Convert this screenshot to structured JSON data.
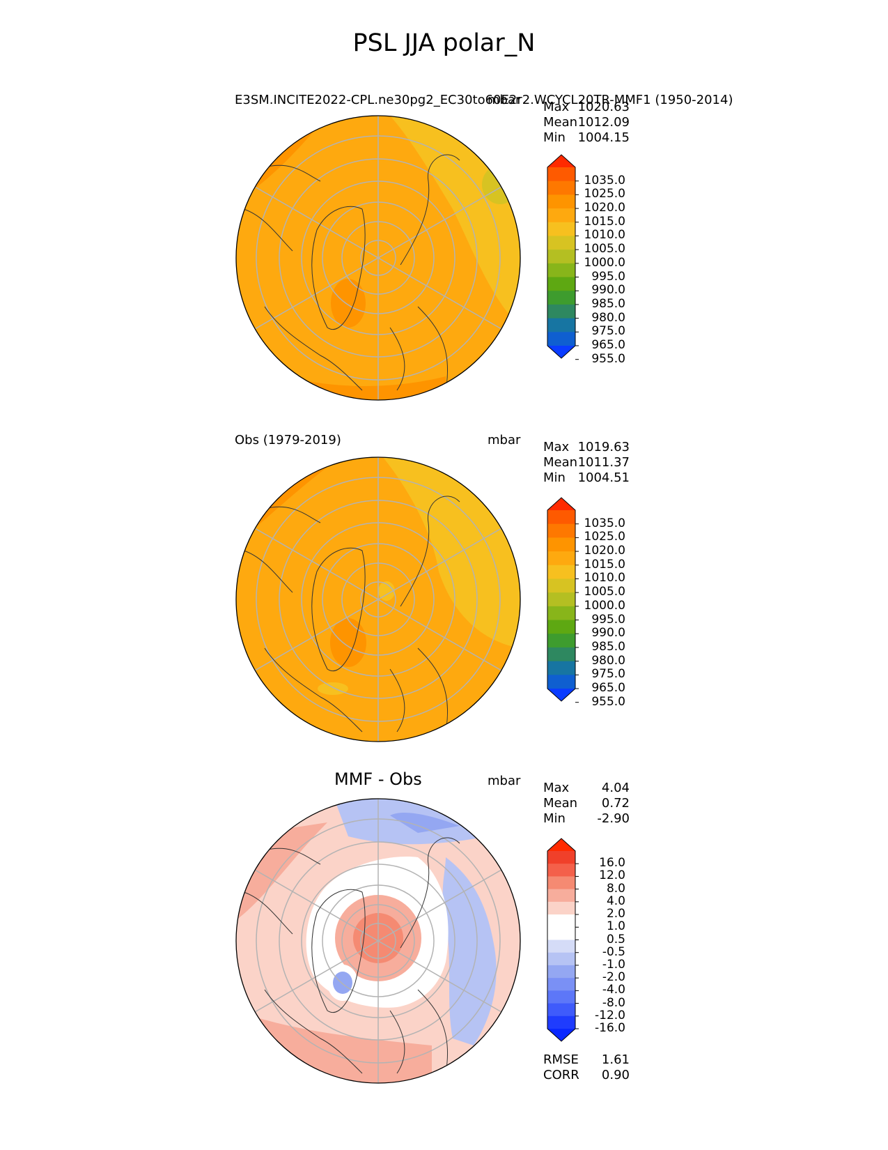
{
  "figure": {
    "title": "PSL JJA polar_N"
  },
  "panels": [
    {
      "name": "test",
      "left_title": "E3SM.INCITE2022-CPL.ne30pg2_EC30to60E2r2.WCYCL20TR-MMF1 (1950-2014)",
      "right_title": "mbar",
      "stats": [
        {
          "label": "Max",
          "value": "1020.63"
        },
        {
          "label": "Mean",
          "value": "1012.09"
        },
        {
          "label": "Min",
          "value": "1004.15"
        }
      ]
    },
    {
      "name": "reference",
      "left_title": "Obs (1979-2019)",
      "right_title": "mbar",
      "stats": [
        {
          "label": "Max",
          "value": "1019.63"
        },
        {
          "label": "Mean",
          "value": "1011.37"
        },
        {
          "label": "Min",
          "value": "1004.51"
        }
      ]
    },
    {
      "name": "difference",
      "center_title": "MMF - Obs",
      "right_title": "mbar",
      "stats": [
        {
          "label": "Max",
          "value": "4.04"
        },
        {
          "label": "Mean",
          "value": "0.72"
        },
        {
          "label": "Min",
          "value": "-2.90"
        }
      ],
      "metrics": [
        {
          "label": "RMSE",
          "value": "1.61"
        },
        {
          "label": "CORR",
          "value": "0.90"
        }
      ]
    }
  ],
  "colorbars": {
    "field": {
      "colors": [
        "#ff2a00",
        "#fe5a00",
        "#fe7800",
        "#fe9400",
        "#fea90f",
        "#f7c01f",
        "#d7c322",
        "#b4bf22",
        "#88b51a",
        "#5ea812",
        "#3e9c2e",
        "#2e8860",
        "#1775a2",
        "#0f5fd0",
        "#0a3cff"
      ],
      "tick_labels": [
        "1035.0",
        "1025.0",
        "1020.0",
        "1015.0",
        "1010.0",
        "1005.0",
        "1000.0",
        "995.0",
        "990.0",
        "985.0",
        "980.0",
        "975.0",
        "965.0",
        "955.0"
      ]
    },
    "diff": {
      "colors": [
        "#ff2a00",
        "#f0402a",
        "#f4604a",
        "#f58a72",
        "#f7ad9c",
        "#fbd3c8",
        "#ffffff",
        "#ffffff",
        "#d5dcf7",
        "#b6c3f4",
        "#94a7f2",
        "#7a90f5",
        "#5d77f8",
        "#3f5bfb",
        "#1f3cfd",
        "#0a28ff"
      ],
      "tick_labels": [
        "16.0",
        "12.0",
        "8.0",
        "4.0",
        "2.0",
        "1.0",
        "0.5",
        "-0.5",
        "-1.0",
        "-2.0",
        "-4.0",
        "-8.0",
        "-12.0",
        "-16.0"
      ]
    }
  },
  "chart_data": [
    {
      "type": "heatmap",
      "projection": "north polar stereographic",
      "title": "E3SM.INCITE2022-CPL.ne30pg2_EC30to60E2r2.WCYCL20TR-MMF1 (1950-2014)",
      "units": "mbar",
      "levels": [
        955,
        965,
        975,
        980,
        985,
        990,
        995,
        1000,
        1005,
        1010,
        1015,
        1020,
        1025,
        1035
      ],
      "max": 1020.63,
      "mean": 1012.09,
      "min": 1004.15
    },
    {
      "type": "heatmap",
      "projection": "north polar stereographic",
      "title": "Obs (1979-2019)",
      "units": "mbar",
      "levels": [
        955,
        965,
        975,
        980,
        985,
        990,
        995,
        1000,
        1005,
        1010,
        1015,
        1020,
        1025,
        1035
      ],
      "max": 1019.63,
      "mean": 1011.37,
      "min": 1004.51
    },
    {
      "type": "heatmap",
      "projection": "north polar stereographic",
      "title": "MMF - Obs",
      "units": "mbar",
      "levels": [
        -16,
        -12,
        -8,
        -4,
        -2,
        -1,
        -0.5,
        0.5,
        1,
        2,
        4,
        8,
        12,
        16
      ],
      "max": 4.04,
      "mean": 0.72,
      "min": -2.9,
      "rmse": 1.61,
      "corr": 0.9
    }
  ]
}
